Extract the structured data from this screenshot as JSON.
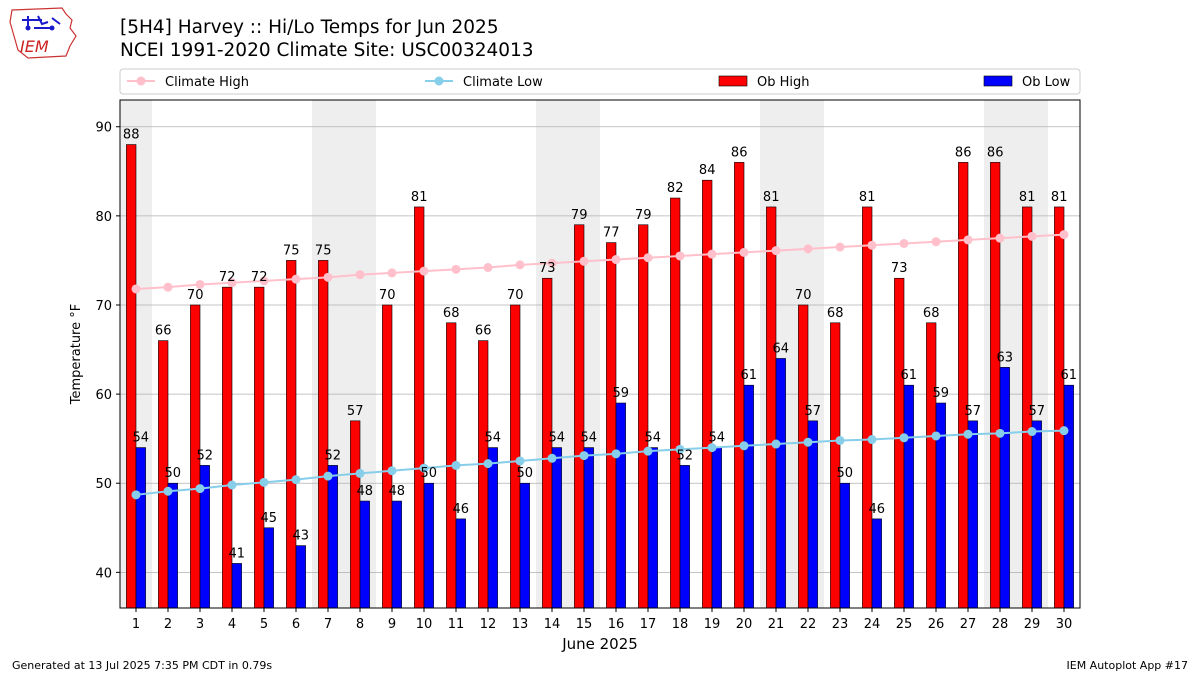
{
  "header": {
    "title_line1": "[5H4] Harvey :: Hi/Lo Temps for Jun 2025",
    "title_line2": "NCEI 1991-2020 Climate Site: USC00324013",
    "logo_text": "IEM"
  },
  "footer": {
    "generated": "Generated at 13 Jul 2025 7:35 PM CDT in 0.79s",
    "app": "IEM Autoplot App #17"
  },
  "colors": {
    "ob_high": "#ff0000",
    "ob_low": "#0000ff",
    "climate_high": "#ffc0cb",
    "climate_low": "#87ceeb",
    "weekend_band": "#eeeeee",
    "grid": "#b0b0b0"
  },
  "chart_data": {
    "type": "bar",
    "xlabel": "June 2025",
    "ylabel": "Temperature °F",
    "ylim": [
      36,
      93
    ],
    "yticks": [
      40,
      50,
      60,
      70,
      80,
      90
    ],
    "grid": "horizontal",
    "legend_placement": "top",
    "categories": [
      1,
      2,
      3,
      4,
      5,
      6,
      7,
      8,
      9,
      10,
      11,
      12,
      13,
      14,
      15,
      16,
      17,
      18,
      19,
      20,
      21,
      22,
      23,
      24,
      25,
      26,
      27,
      28,
      29,
      30
    ],
    "shaded_days": [
      1,
      7,
      8,
      14,
      15,
      21,
      22,
      28,
      29
    ],
    "series": [
      {
        "name": "Climate High",
        "kind": "line",
        "values": [
          71.8,
          72.0,
          72.3,
          72.5,
          72.7,
          72.9,
          73.1,
          73.4,
          73.6,
          73.8,
          74.0,
          74.2,
          74.5,
          74.7,
          74.9,
          75.1,
          75.3,
          75.5,
          75.7,
          75.9,
          76.1,
          76.3,
          76.5,
          76.7,
          76.9,
          77.1,
          77.3,
          77.5,
          77.7,
          77.9
        ]
      },
      {
        "name": "Climate Low",
        "kind": "line",
        "values": [
          48.7,
          49.1,
          49.4,
          49.8,
          50.1,
          50.4,
          50.8,
          51.1,
          51.4,
          51.7,
          52.0,
          52.2,
          52.5,
          52.8,
          53.1,
          53.3,
          53.6,
          53.8,
          54.0,
          54.2,
          54.4,
          54.6,
          54.8,
          54.9,
          55.1,
          55.3,
          55.5,
          55.6,
          55.8,
          55.9
        ]
      },
      {
        "name": "Ob High",
        "kind": "bar",
        "values": [
          88,
          66,
          70,
          72,
          72,
          75,
          75,
          57,
          70,
          81,
          68,
          66,
          70,
          73,
          79,
          77,
          79,
          82,
          84,
          86,
          81,
          70,
          68,
          81,
          73,
          68,
          86,
          86,
          81,
          81
        ]
      },
      {
        "name": "Ob Low",
        "kind": "bar",
        "values": [
          54,
          50,
          52,
          41,
          45,
          43,
          52,
          48,
          48,
          50,
          46,
          54,
          50,
          54,
          54,
          59,
          54,
          52,
          54,
          61,
          64,
          57,
          50,
          46,
          61,
          59,
          57,
          63,
          57,
          61
        ]
      }
    ]
  }
}
